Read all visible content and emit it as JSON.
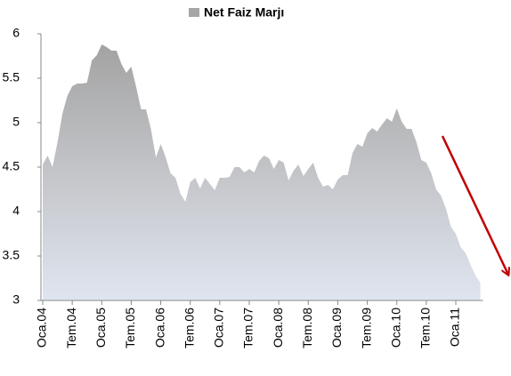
{
  "chart_data": {
    "type": "area",
    "categories": [
      "Oca.04",
      null,
      null,
      null,
      null,
      null,
      "Tem.04",
      null,
      null,
      null,
      null,
      null,
      "Oca.05",
      null,
      null,
      null,
      null,
      null,
      "Tem.05",
      null,
      null,
      null,
      null,
      null,
      "Oca.06",
      null,
      null,
      null,
      null,
      null,
      "Tem.06",
      null,
      null,
      null,
      null,
      null,
      "Oca.07",
      null,
      null,
      null,
      null,
      null,
      "Tem.07",
      null,
      null,
      null,
      null,
      null,
      "Oca.08",
      null,
      null,
      null,
      null,
      null,
      "Tem.08",
      null,
      null,
      null,
      null,
      null,
      "Oca.09",
      null,
      null,
      null,
      null,
      null,
      "Tem.09",
      null,
      null,
      null,
      null,
      null,
      "Oca.10",
      null,
      null,
      null,
      null,
      null,
      "Tem.10",
      null,
      null,
      null,
      null,
      null,
      "Oca.11",
      null,
      null,
      null,
      null,
      null
    ],
    "series": [
      {
        "name": "Net Faiz Marjı",
        "color": "#a6a6a6",
        "values": [
          4.53,
          4.63,
          4.5,
          4.78,
          5.1,
          5.3,
          5.41,
          5.44,
          5.44,
          5.45,
          5.7,
          5.76,
          5.88,
          5.85,
          5.81,
          5.81,
          5.66,
          5.56,
          5.63,
          5.4,
          5.15,
          5.15,
          4.93,
          4.61,
          4.76,
          4.61,
          4.43,
          4.38,
          4.2,
          4.11,
          4.33,
          4.38,
          4.26,
          4.38,
          4.31,
          4.24,
          4.38,
          4.38,
          4.39,
          4.5,
          4.5,
          4.44,
          4.48,
          4.44,
          4.57,
          4.63,
          4.6,
          4.48,
          4.58,
          4.55,
          4.35,
          4.46,
          4.53,
          4.4,
          4.48,
          4.55,
          4.38,
          4.28,
          4.3,
          4.25,
          4.36,
          4.41,
          4.41,
          4.66,
          4.76,
          4.73,
          4.88,
          4.94,
          4.9,
          4.98,
          5.05,
          5.01,
          5.16,
          5.01,
          4.93,
          4.93,
          4.78,
          4.58,
          4.55,
          4.43,
          4.25,
          4.18,
          4.03,
          3.83,
          3.75,
          3.6,
          3.53,
          3.4,
          3.28,
          3.2
        ]
      }
    ],
    "ylim": [
      3,
      6
    ],
    "yticks": [
      3,
      {
        "value": 3.5,
        "label": "3.5"
      },
      4,
      {
        "value": 4.5,
        "label": "4.5"
      },
      5,
      {
        "value": 5.5,
        "label": "5.5"
      },
      6
    ],
    "legend": "top"
  }
}
